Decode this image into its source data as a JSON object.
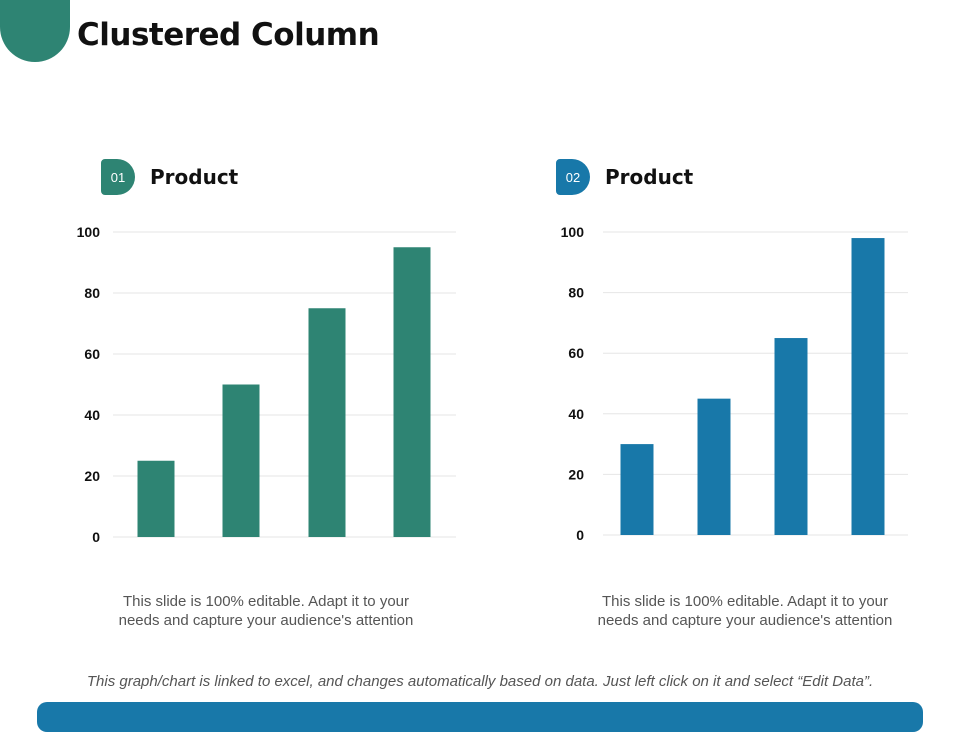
{
  "title": "Clustered Column",
  "colors": {
    "green": "#2e8473",
    "blue": "#1878a9"
  },
  "panels": [
    {
      "badge": "01",
      "title": "Product",
      "caption_line1": "This slide is 100% editable. Adapt it to your",
      "caption_line2": "needs and capture your audience's attention"
    },
    {
      "badge": "02",
      "title": "Product",
      "caption_line1": "This slide is 100% editable. Adapt it to your",
      "caption_line2": "needs and capture your audience's attention"
    }
  ],
  "footnote": "This graph/chart is linked to excel, and changes automatically based on data. Just left click on it and select “Edit Data”.",
  "chart_data": [
    {
      "type": "bar",
      "categories": [
        "",
        "",
        "",
        ""
      ],
      "values": [
        25,
        50,
        75,
        95
      ],
      "color": "#2e8473",
      "ylim": [
        0,
        100
      ],
      "yticks": [
        0,
        20,
        40,
        60,
        80,
        100
      ],
      "grid": true,
      "title": "",
      "xlabel": "",
      "ylabel": ""
    },
    {
      "type": "bar",
      "categories": [
        "",
        "",
        "",
        ""
      ],
      "values": [
        30,
        45,
        65,
        98
      ],
      "color": "#1878a9",
      "ylim": [
        0,
        100
      ],
      "yticks": [
        0,
        20,
        40,
        60,
        80,
        100
      ],
      "grid": true,
      "title": "",
      "xlabel": "",
      "ylabel": ""
    }
  ]
}
